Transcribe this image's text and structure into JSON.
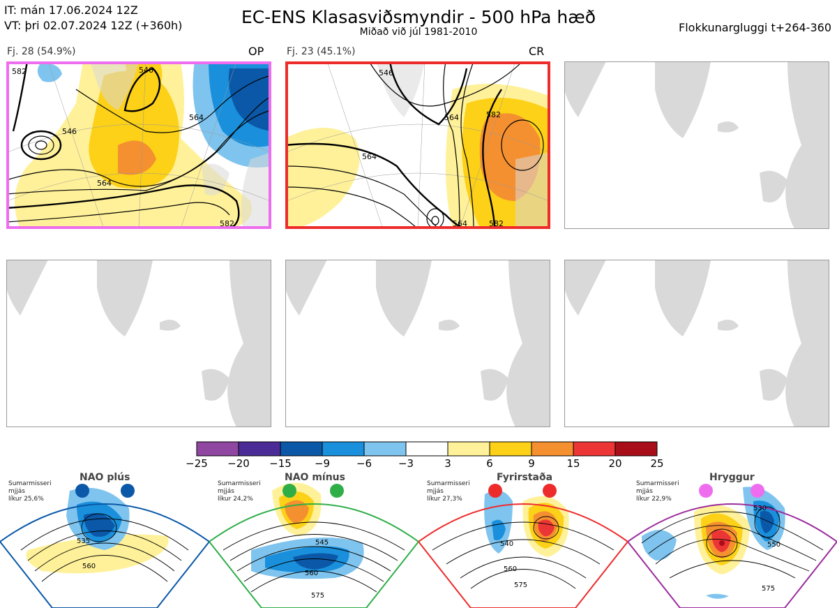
{
  "header": {
    "it_line": "IT: mán 17.06.2024 12Z",
    "vt_line": "VT: þri 02.07.2024 12Z  (+360h)",
    "title": "EC-ENS Klasasviðsmyndir - 500 hPa hæð",
    "subtitle": "Miðað við júl 1981-2010",
    "window": "Flokkunargluggi t+264-360"
  },
  "panels": [
    {
      "label": "Fj. 28 (54.9%)",
      "code": "OP",
      "border_color": "#ee6dee",
      "contours": [
        "546",
        "546",
        "564",
        "564",
        "582",
        "582"
      ]
    },
    {
      "label": "Fj. 23 (45.1%)",
      "code": "CR",
      "border_color": "#ee2b2b",
      "contours": [
        "546",
        "564",
        "582",
        "564",
        "582",
        "564"
      ]
    },
    {
      "label": "",
      "code": "",
      "border_color": "#999999",
      "contours": []
    },
    {
      "label": "",
      "code": "",
      "border_color": "#999999",
      "contours": []
    },
    {
      "label": "",
      "code": "",
      "border_color": "#999999",
      "contours": []
    },
    {
      "label": "",
      "code": "",
      "border_color": "#999999",
      "contours": []
    }
  ],
  "colorbar": {
    "ticks": [
      "−25",
      "−20",
      "−15",
      "−9",
      "−6",
      "−3",
      "3",
      "6",
      "9",
      "15",
      "20",
      "25"
    ],
    "colors": [
      "#8f47a2",
      "#4b2c96",
      "#0b58a8",
      "#1a90dc",
      "#7fc4ee",
      "#ffffff",
      "#fff199",
      "#fcd118",
      "#f59030",
      "#ec3535",
      "#a80e18"
    ]
  },
  "regimes": [
    {
      "name": "NAO plús",
      "season": "Sumarmisseri",
      "mean": "mjjás",
      "prob": "líkur 25,6%",
      "color": "#0b58a8",
      "contours": [
        "535",
        "560"
      ]
    },
    {
      "name": "NAO mínus",
      "season": "Sumarmisseri",
      "mean": "mjjás",
      "prob": "líkur 24,2%",
      "color": "#2fae48",
      "contours": [
        "545",
        "560",
        "575"
      ]
    },
    {
      "name": "Fyrirstaða",
      "season": "Sumarmisseri",
      "mean": "mjjás",
      "prob": "líkur 27,3%",
      "color": "#ee2b2b",
      "contours": [
        "540",
        "560",
        "575"
      ]
    },
    {
      "name": "Hryggur",
      "season": "Sumarmisseri",
      "mean": "mjjás",
      "prob": "líkur 22,9%",
      "color": "#ee6dee",
      "contours": [
        "530",
        "550",
        "575"
      ]
    }
  ]
}
